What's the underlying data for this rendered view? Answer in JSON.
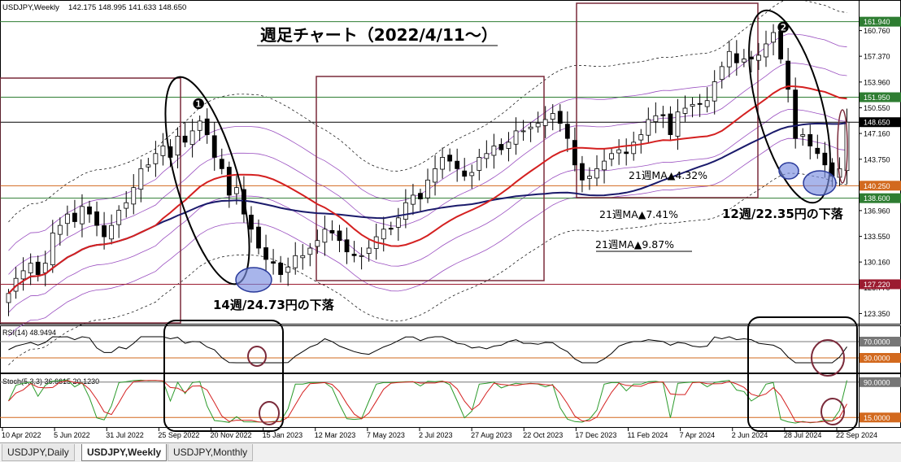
{
  "header": {
    "symbol": "USDJPY,Weekly",
    "ohlc": "142.175 148.995 141.633 148.650"
  },
  "chart_title": "週足チャート（2022/4/11〜）",
  "annotations": {
    "marker1": "❶",
    "marker2": "❷",
    "drop1": "14週/24.73円の下落",
    "drop2": "12週/22.35円の下落",
    "ma1": "21週MA▲4.32%",
    "ma2": "21週MA▲7.41%",
    "ma3": "21週MA▲9.87%"
  },
  "colors": {
    "up": "#ffffff",
    "down": "#000000",
    "ma_red": "#d42020",
    "ma_navy": "#1a1a6b",
    "band_purple": "#9a4fc0",
    "box": "#7a2a3a",
    "ellipse_fill": "#7a8ee0",
    "rsi_line": "#000000",
    "stoch_main": "#2a9a2a",
    "stoch_signal": "#d42020"
  },
  "tabs": [
    {
      "label": "USDJPY,Daily",
      "active": false
    },
    {
      "label": "USDJPY,Weekly",
      "active": true
    },
    {
      "label": "USDJPY,Monthly",
      "active": false
    }
  ],
  "chart_data": {
    "type": "candlestick",
    "symbol": "USDJPY",
    "timeframe": "Weekly",
    "ylim": [
      122.0,
      163.3
    ],
    "price_ticks": [
      "160.760",
      "157.370",
      "153.960",
      "150.550",
      "147.160",
      "143.750",
      "140.360",
      "136.960",
      "133.550",
      "130.160",
      "126.770",
      "123.350"
    ],
    "price_tick_values": [
      160.76,
      157.37,
      153.96,
      150.55,
      147.16,
      143.75,
      140.36,
      136.96,
      133.55,
      130.16,
      126.77,
      123.35
    ],
    "x_tick_labels": [
      "10 Apr 2022",
      "5 Jun 2022",
      "31 Jul 2022",
      "25 Sep 2022",
      "20 Nov 2022",
      "15 Jan 2023",
      "12 Mar 2023",
      "7 May 2023",
      "2 Jul 2023",
      "27 Aug 2023",
      "22 Oct 2023",
      "17 Dec 2023",
      "11 Feb 2024",
      "7 Apr 2024",
      "2 Jun 2024",
      "28 Jul 2024",
      "22 Sep 2024"
    ],
    "hlines": [
      {
        "label": "161.940",
        "value": 161.94,
        "color": "#2e7d32"
      },
      {
        "label": "151.950",
        "value": 151.95,
        "color": "#2e7d32"
      },
      {
        "label": "148.650",
        "value": 148.65,
        "color": "#000000"
      },
      {
        "label": "140.250",
        "value": 140.25,
        "color": "#d2691e"
      },
      {
        "label": "138.600",
        "value": 138.6,
        "color": "#2e7d32"
      },
      {
        "label": "127.220",
        "value": 127.22,
        "color": "#9b1b30"
      }
    ],
    "close_weekly": [
      126.0,
      128.0,
      129.0,
      130.0,
      128.5,
      130.0,
      134.0,
      135.0,
      136.5,
      135.5,
      137.5,
      136.5,
      135.0,
      133.5,
      135.0,
      137.0,
      138.0,
      140.0,
      142.5,
      143.0,
      144.5,
      145.5,
      144.0,
      146.8,
      146.0,
      147.5,
      148.8,
      147.0,
      144.0,
      142.5,
      139.0,
      140.0,
      136.5,
      134.5,
      132.0,
      130.5,
      130.0,
      128.5,
      129.5,
      131.0,
      131.0,
      132.0,
      133.0,
      134.5,
      134.0,
      133.0,
      131.5,
      131.0,
      131.0,
      132.0,
      133.5,
      134.5,
      134.5,
      136.0,
      138.0,
      139.0,
      138.5,
      141.0,
      142.5,
      144.0,
      143.5,
      142.5,
      141.5,
      142.0,
      144.0,
      144.5,
      145.5,
      145.0,
      146.0,
      147.5,
      147.5,
      148.0,
      148.5,
      149.0,
      149.8,
      148.5,
      146.5,
      143.0,
      141.0,
      141.5,
      142.5,
      143.5,
      144.5,
      145.0,
      144.5,
      146.0,
      147.0,
      149.0,
      149.5,
      149.5,
      147.0,
      150.0,
      150.5,
      151.0,
      151.0,
      151.5,
      154.0,
      156.0,
      158.0,
      156.5,
      157.0,
      157.0,
      157.5,
      159.0,
      160.5,
      157.0,
      153.0,
      146.5,
      147.0,
      145.5,
      144.5,
      143.0,
      141.5,
      142.5,
      148.65
    ],
    "rsi": {
      "label": "RSI(14) 48.9494",
      "levels": [
        "70.0000",
        "30.0000"
      ],
      "level_values": [
        70,
        30
      ]
    },
    "stoch": {
      "label": "Stoch(5,3,3) 36.6615 20.1230",
      "levels": [
        "90.0000",
        "15.0000"
      ],
      "level_values": [
        90,
        15
      ]
    }
  }
}
